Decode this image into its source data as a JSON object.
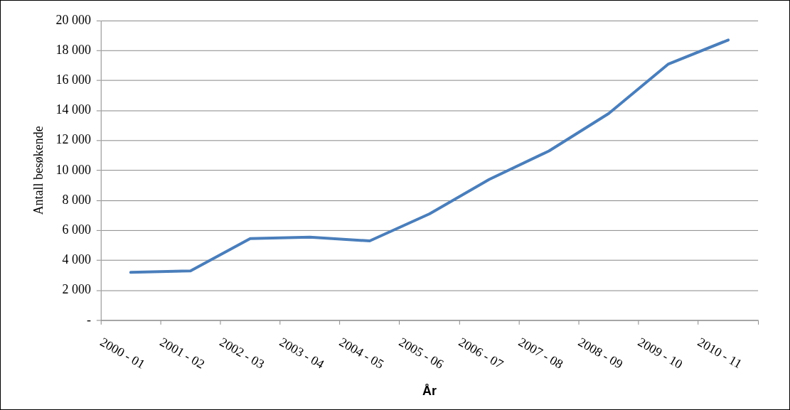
{
  "chart_data": {
    "type": "line",
    "xlabel": "År",
    "ylabel": "Antall besøkende",
    "categories": [
      "2000 - 01",
      "2001 - 02",
      "2002 - 03",
      "2003 - 04",
      "2004 - 05",
      "2005 - 06",
      "2006 - 07",
      "2007 - 08",
      "2008 - 09",
      "2009 - 10",
      "2010 - 11"
    ],
    "series": [
      {
        "color": "#4a7ebb",
        "values": [
          3200,
          3300,
          5450,
          5550,
          5300,
          7100,
          9400,
          11300,
          13800,
          17100,
          18700
        ]
      }
    ],
    "ylim": [
      0,
      20000
    ],
    "yticks": [
      {
        "value": 0,
        "label": "-"
      },
      {
        "value": 2000,
        "label": "2 000"
      },
      {
        "value": 4000,
        "label": "4 000"
      },
      {
        "value": 6000,
        "label": "6 000"
      },
      {
        "value": 8000,
        "label": "8 000"
      },
      {
        "value": 10000,
        "label": "10 000"
      },
      {
        "value": 12000,
        "label": "12 000"
      },
      {
        "value": 14000,
        "label": "14 000"
      },
      {
        "value": 16000,
        "label": "16 000"
      },
      {
        "value": 18000,
        "label": "18 000"
      },
      {
        "value": 20000,
        "label": "20 000"
      }
    ],
    "grid": "y",
    "legend": false,
    "marker": "none",
    "line_style": "solid"
  }
}
